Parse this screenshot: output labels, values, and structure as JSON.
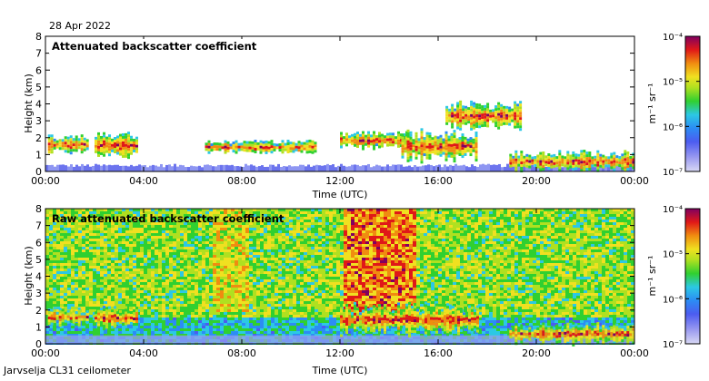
{
  "figure": {
    "date": "28 Apr 2022",
    "footer": "Jarvselja CL31 ceilometer"
  },
  "chart_data": [
    {
      "type": "heatmap",
      "title": "Attenuated backscatter coefficient",
      "xlabel": "Time (UTC)",
      "ylabel": "Height (km)",
      "xlim": [
        0,
        24
      ],
      "ylim": [
        0,
        8
      ],
      "x_ticks": [
        "00:00",
        "04:00",
        "08:00",
        "12:00",
        "16:00",
        "20:00",
        "00:00"
      ],
      "y_ticks": [
        "0",
        "1",
        "2",
        "3",
        "4",
        "5",
        "6",
        "7",
        "8"
      ],
      "colorbar": {
        "label": "m⁻¹ sr⁻¹",
        "scale": "log",
        "ticks": [
          "10⁻⁷",
          "10⁻⁶",
          "10⁻⁵",
          "10⁻⁴"
        ],
        "range": [
          1e-07,
          0.0001
        ]
      },
      "features": [
        {
          "name": "near-surface aerosol layer",
          "t_start": 0,
          "t_end": 24,
          "h_bottom": 0,
          "h_top": 0.4
        },
        {
          "name": "cloud layer",
          "t_start": 0.1,
          "t_end": 1.7,
          "h_bottom": 1.1,
          "h_top": 2.2
        },
        {
          "name": "cloud layer",
          "t_start": 2.0,
          "t_end": 3.7,
          "h_bottom": 0.8,
          "h_top": 2.4
        },
        {
          "name": "cloud base",
          "t_start": 6.5,
          "t_end": 11.0,
          "h_bottom": 1.1,
          "h_top": 1.9
        },
        {
          "name": "cloud layer",
          "t_start": 12.0,
          "t_end": 14.8,
          "h_bottom": 1.4,
          "h_top": 2.4
        },
        {
          "name": "cloud layer",
          "t_start": 14.5,
          "t_end": 17.6,
          "h_bottom": 0.5,
          "h_top": 2.6
        },
        {
          "name": "elevated cloud",
          "t_start": 16.3,
          "t_end": 19.4,
          "h_bottom": 2.5,
          "h_top": 4.2
        },
        {
          "name": "low cloud",
          "t_start": 18.9,
          "t_end": 24.0,
          "h_bottom": 0.0,
          "h_top": 1.3
        }
      ]
    },
    {
      "type": "heatmap",
      "title": "Raw attenuated backscatter coefficient",
      "xlabel": "Time (UTC)",
      "ylabel": "Height (km)",
      "xlim": [
        0,
        24
      ],
      "ylim": [
        0,
        8
      ],
      "x_ticks": [
        "00:00",
        "04:00",
        "08:00",
        "12:00",
        "16:00",
        "20:00",
        "00:00"
      ],
      "y_ticks": [
        "0",
        "1",
        "2",
        "3",
        "4",
        "5",
        "6",
        "7",
        "8"
      ],
      "colorbar": {
        "label": "m⁻¹ sr⁻¹",
        "scale": "log",
        "ticks": [
          "10⁻⁷",
          "10⁻⁶",
          "10⁻⁵",
          "10⁻⁴"
        ],
        "range": [
          1e-07,
          0.0001
        ]
      },
      "features": [
        {
          "name": "instrument noise (daytime high)",
          "t_start": 12.0,
          "t_end": 15.0,
          "h_bottom": 2.0,
          "h_top": 8.0
        },
        {
          "name": "cloud layer",
          "t_start": 0.1,
          "t_end": 1.7,
          "h_bottom": 1.1,
          "h_top": 2.2
        },
        {
          "name": "cloud layer",
          "t_start": 2.0,
          "t_end": 3.7,
          "h_bottom": 0.8,
          "h_top": 2.4
        },
        {
          "name": "cloud layer",
          "t_start": 12.0,
          "t_end": 17.6,
          "h_bottom": 0.5,
          "h_top": 2.5
        },
        {
          "name": "low cloud",
          "t_start": 18.9,
          "t_end": 24.0,
          "h_bottom": 0.0,
          "h_top": 1.3
        }
      ]
    }
  ]
}
